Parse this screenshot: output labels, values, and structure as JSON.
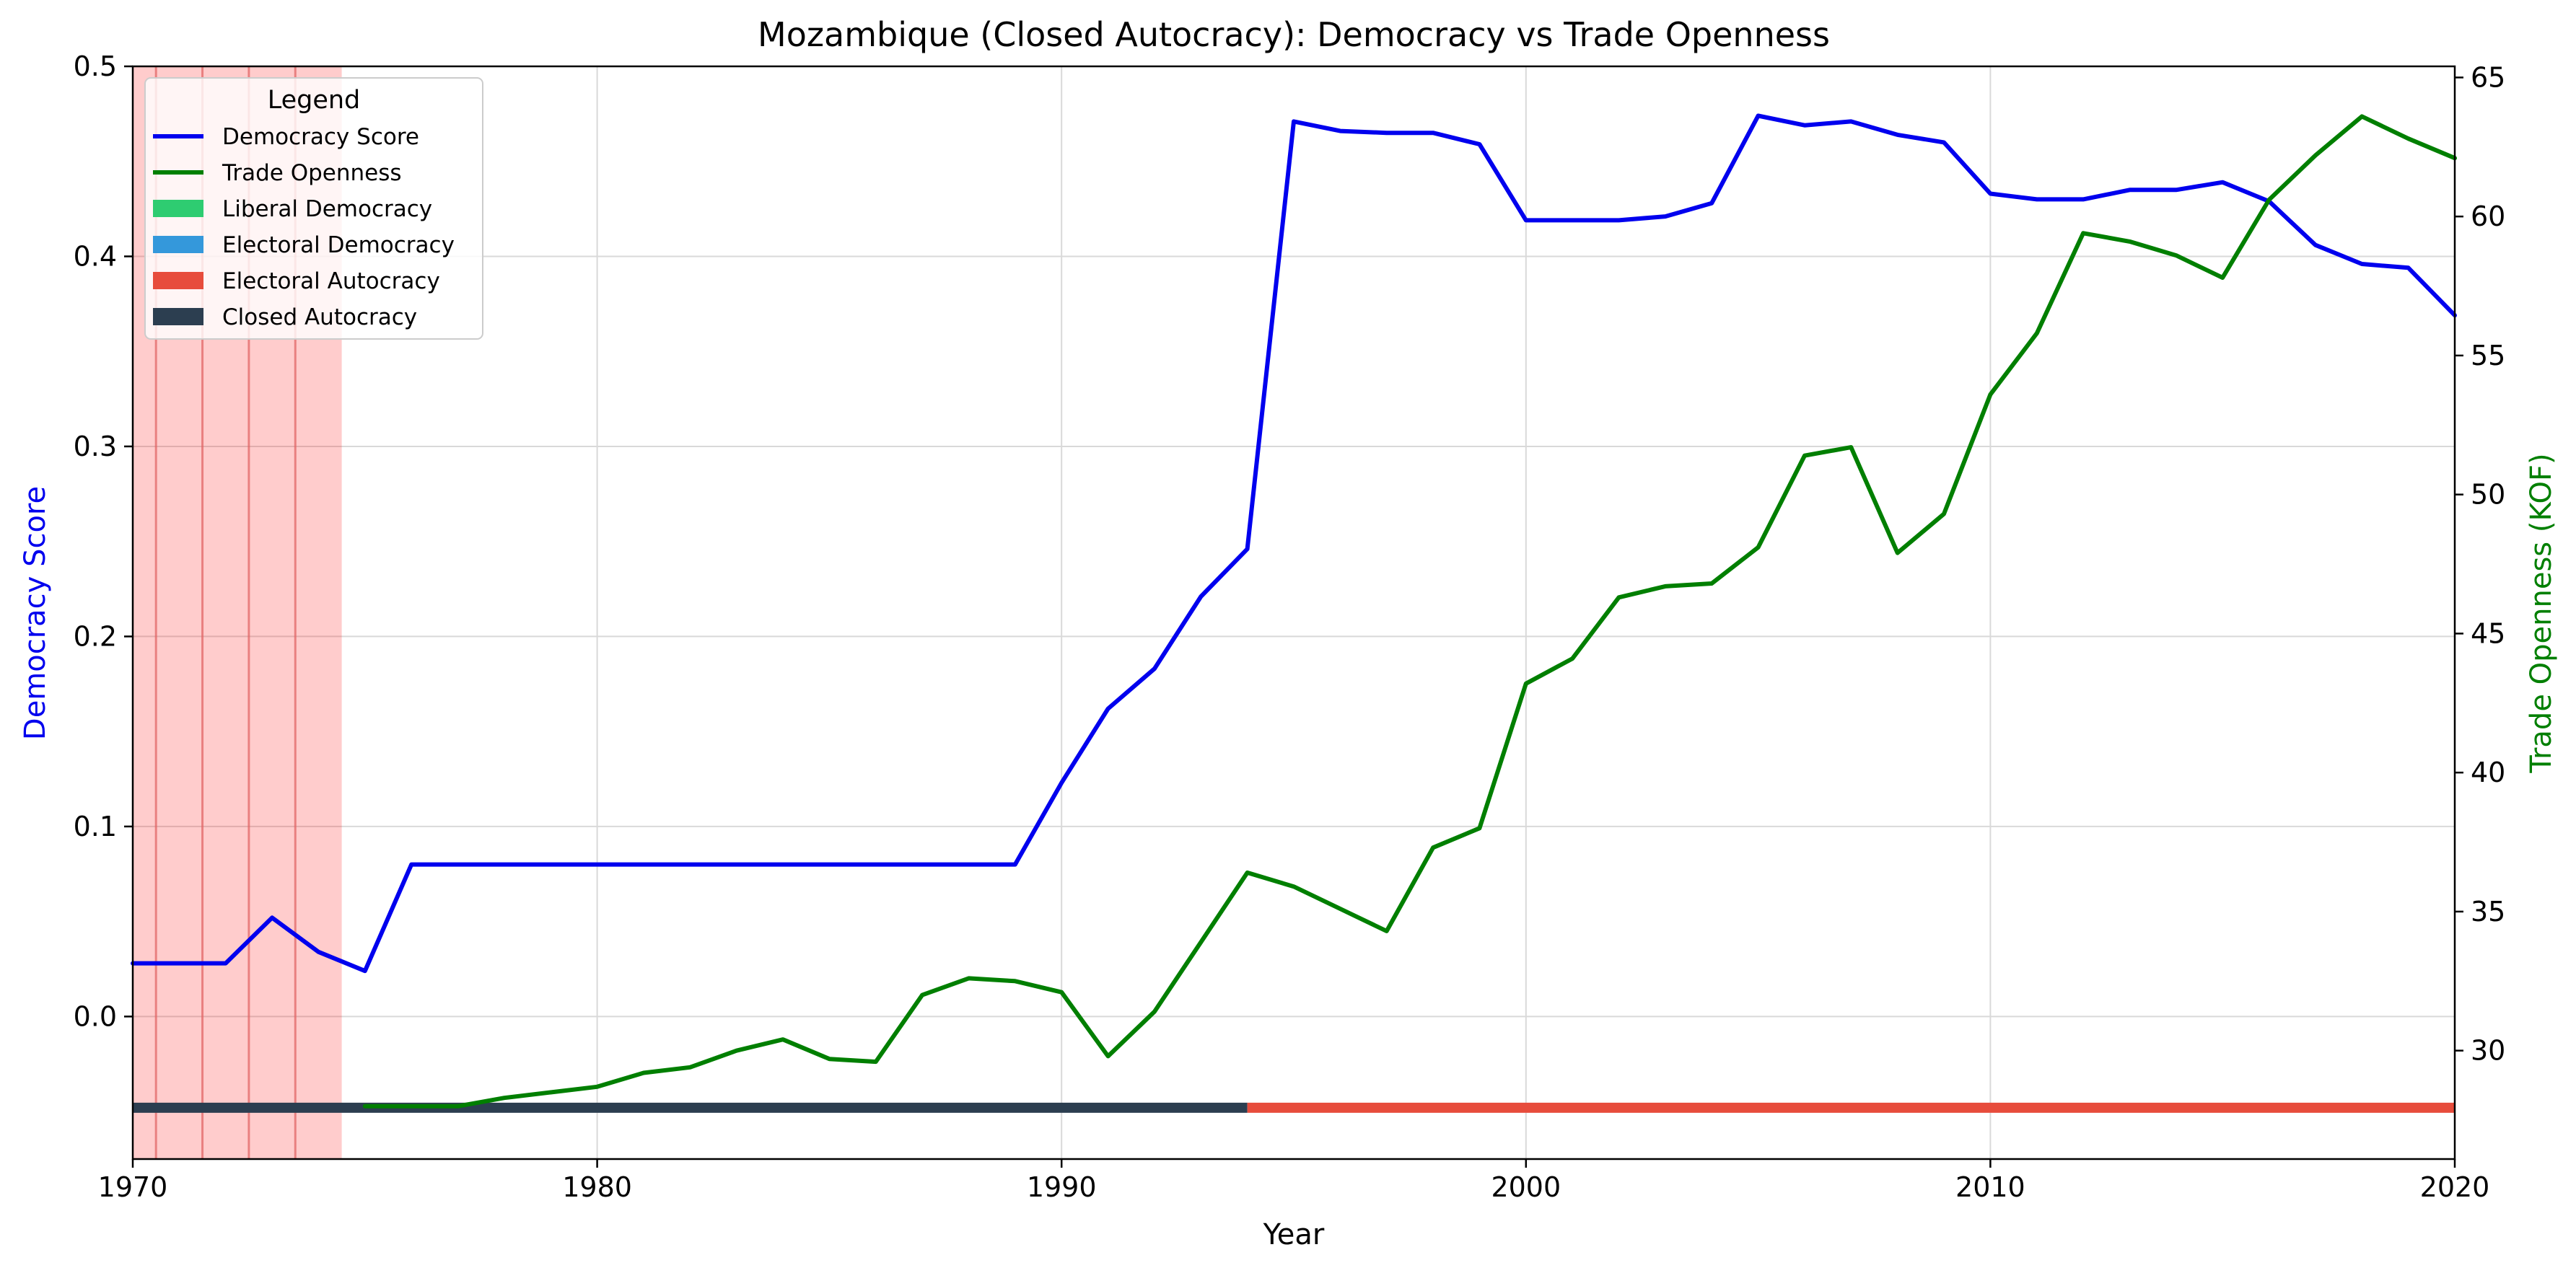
{
  "chart_data": {
    "type": "line",
    "title": "Mozambique (Closed Autocracy): Democracy vs Trade Openness",
    "xlabel": "Year",
    "ylabel_left": "Democracy Score",
    "ylabel_right": "Trade Openness (KOF)",
    "xlim": [
      1970,
      2020
    ],
    "ylim_left": [
      -0.075,
      0.5
    ],
    "ylim_right": [
      26.1,
      65.4
    ],
    "x_ticks": [
      1970,
      1980,
      1990,
      2000,
      2010,
      2020
    ],
    "y_left_ticks": [
      0.0,
      0.1,
      0.2,
      0.3,
      0.4,
      0.5
    ],
    "y_left_tick_labels": [
      "0.0",
      "0.1",
      "0.2",
      "0.3",
      "0.4",
      "0.5"
    ],
    "y_right_ticks": [
      30,
      35,
      40,
      45,
      50,
      55,
      60,
      65
    ],
    "grid": true,
    "legend": {
      "title": "Legend",
      "position": "top-left",
      "entries": [
        {
          "label": "Democracy Score",
          "kind": "line",
          "color": "#0000ee"
        },
        {
          "label": "Trade Openness",
          "kind": "line",
          "color": "#007f00"
        },
        {
          "label": "Liberal Democracy",
          "kind": "patch",
          "color": "#2ecc71"
        },
        {
          "label": "Electoral Democracy",
          "kind": "patch",
          "color": "#3498db"
        },
        {
          "label": "Electoral Autocracy",
          "kind": "patch",
          "color": "#e74c3c"
        },
        {
          "label": "Closed Autocracy",
          "kind": "patch",
          "color": "#2c3e50"
        }
      ]
    },
    "series": [
      {
        "name": "Democracy Score",
        "axis": "left",
        "color": "#0000ee",
        "x": [
          1970,
          1971,
          1972,
          1973,
          1974,
          1975,
          1976,
          1977,
          1978,
          1979,
          1980,
          1981,
          1982,
          1983,
          1984,
          1985,
          1986,
          1987,
          1988,
          1989,
          1990,
          1991,
          1992,
          1993,
          1994,
          1995,
          1996,
          1997,
          1998,
          1999,
          2000,
          2001,
          2002,
          2003,
          2004,
          2005,
          2006,
          2007,
          2008,
          2009,
          2010,
          2011,
          2012,
          2013,
          2014,
          2015,
          2016,
          2017,
          2018,
          2019,
          2020
        ],
        "values": [
          0.028,
          0.028,
          0.028,
          0.052,
          0.034,
          0.024,
          0.08,
          0.08,
          0.08,
          0.08,
          0.08,
          0.08,
          0.08,
          0.08,
          0.08,
          0.08,
          0.08,
          0.08,
          0.08,
          0.08,
          0.123,
          0.162,
          0.183,
          0.221,
          0.246,
          0.471,
          0.466,
          0.465,
          0.465,
          0.459,
          0.419,
          0.419,
          0.419,
          0.421,
          0.428,
          0.474,
          0.469,
          0.471,
          0.464,
          0.46,
          0.433,
          0.43,
          0.43,
          0.435,
          0.435,
          0.439,
          0.429,
          0.406,
          0.396,
          0.394,
          0.369
        ]
      },
      {
        "name": "Trade Openness",
        "axis": "right",
        "color": "#007f00",
        "x": [
          1975,
          1976,
          1977,
          1978,
          1979,
          1980,
          1981,
          1982,
          1983,
          1984,
          1985,
          1986,
          1987,
          1988,
          1989,
          1990,
          1991,
          1992,
          1993,
          1994,
          1995,
          1996,
          1997,
          1998,
          1999,
          2000,
          2001,
          2002,
          2003,
          2004,
          2005,
          2006,
          2007,
          2008,
          2009,
          2010,
          2011,
          2012,
          2013,
          2014,
          2015,
          2016,
          2017,
          2018,
          2019,
          2020
        ],
        "values": [
          28.0,
          28.0,
          28.0,
          28.3,
          28.5,
          28.7,
          29.2,
          29.4,
          30.0,
          30.4,
          29.7,
          29.6,
          32.0,
          32.6,
          32.5,
          32.1,
          29.8,
          31.4,
          33.9,
          36.4,
          35.9,
          35.1,
          34.3,
          37.3,
          38.0,
          43.2,
          44.1,
          46.3,
          46.7,
          46.8,
          48.1,
          51.4,
          51.7,
          47.9,
          49.3,
          53.6,
          55.8,
          59.4,
          59.1,
          58.6,
          57.8,
          60.6,
          62.2,
          63.6,
          62.8,
          62.1
        ]
      }
    ],
    "shaded_spans": [
      {
        "from": 1970,
        "to": 1974.5,
        "color": "#ff0000",
        "opacity": 0.2
      }
    ],
    "vertical_markers": [
      1970.5,
      1971.5,
      1972.5,
      1973.5
    ],
    "regime_bar": {
      "y": -0.048,
      "segments": [
        {
          "from": 1970,
          "to": 1994,
          "regime": "Closed Autocracy",
          "color": "#2c3e50"
        },
        {
          "from": 1994,
          "to": 2020,
          "regime": "Electoral Autocracy",
          "color": "#e74c3c"
        }
      ]
    }
  }
}
